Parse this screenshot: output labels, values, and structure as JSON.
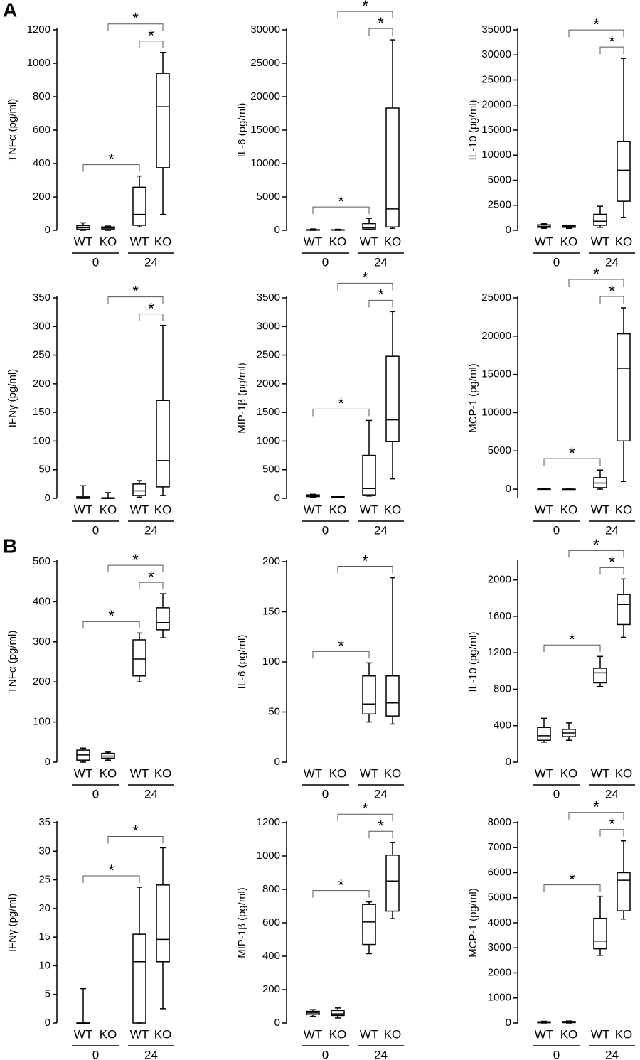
{
  "panel_labels": [
    "A",
    "B"
  ],
  "chart_data": [
    {
      "type": "box",
      "ylabel": "TNFα (pg/ml)",
      "categories": [
        "WT",
        "KO",
        "WT",
        "KO"
      ],
      "groups": [
        "0",
        "24"
      ],
      "ylim": [
        0,
        1200
      ],
      "yticks": [
        0,
        200,
        400,
        600,
        800,
        1000,
        1200
      ],
      "boxes": [
        {
          "min": 0,
          "q1": 5,
          "median": 15,
          "q3": 28,
          "max": 45
        },
        {
          "min": 0,
          "q1": 8,
          "median": 15,
          "q3": 20,
          "max": 25
        },
        {
          "min": 20,
          "q1": 30,
          "median": 95,
          "q3": 258,
          "max": 325
        },
        {
          "min": 95,
          "q1": 375,
          "median": 740,
          "q3": 940,
          "max": 1065
        }
      ],
      "comparisons": [
        {
          "between": [
            0,
            2
          ],
          "label": "*"
        },
        {
          "between": [
            2,
            3
          ],
          "label": "*"
        },
        {
          "between": [
            1,
            3
          ],
          "label": "*"
        }
      ]
    },
    {
      "type": "box",
      "ylabel": "IL-6 (pg/ml)",
      "categories": [
        "WT",
        "KO",
        "WT",
        "KO"
      ],
      "groups": [
        "0",
        "24"
      ],
      "ylim": [
        0,
        30000
      ],
      "yticks": [
        0,
        5000,
        10000,
        15000,
        20000,
        25000,
        30000
      ],
      "boxes": [
        {
          "min": 0,
          "q1": 20,
          "median": 50,
          "q3": 100,
          "max": 200
        },
        {
          "min": 0,
          "q1": 20,
          "median": 40,
          "q3": 80,
          "max": 150
        },
        {
          "min": 100,
          "q1": 200,
          "median": 400,
          "q3": 1000,
          "max": 1800
        },
        {
          "min": 300,
          "q1": 500,
          "median": 3200,
          "q3": 18300,
          "max": 28500
        }
      ],
      "comparisons": [
        {
          "between": [
            0,
            2
          ],
          "label": "*"
        },
        {
          "between": [
            2,
            3
          ],
          "label": "*"
        },
        {
          "between": [
            1,
            3
          ],
          "label": "*"
        }
      ]
    },
    {
      "type": "box",
      "ylabel": "IL-10 (pg/ml)",
      "categories": [
        "WT",
        "KO",
        "WT",
        "KO"
      ],
      "groups": [
        "0",
        "24"
      ],
      "scale": "segmented",
      "ylim": [
        0,
        35000
      ],
      "yticks": [
        0,
        2500,
        5000,
        10000,
        15000,
        20000,
        25000,
        30000,
        35000
      ],
      "boxes": [
        {
          "min": 200,
          "q1": 300,
          "median": 400,
          "q3": 550,
          "max": 650
        },
        {
          "min": 200,
          "q1": 300,
          "median": 350,
          "q3": 450,
          "max": 500
        },
        {
          "min": 300,
          "q1": 500,
          "median": 900,
          "q3": 1600,
          "max": 2400
        },
        {
          "min": 1300,
          "q1": 2900,
          "median": 7000,
          "q3": 12700,
          "max": 29300
        }
      ],
      "comparisons": [
        {
          "between": [
            2,
            3
          ],
          "label": "*"
        },
        {
          "between": [
            1,
            3
          ],
          "label": "*"
        }
      ]
    },
    {
      "type": "box",
      "ylabel": "IFNγ (pg/ml)",
      "categories": [
        "WT",
        "KO",
        "WT",
        "KO"
      ],
      "groups": [
        "0",
        "24"
      ],
      "ylim": [
        0,
        350
      ],
      "yticks": [
        0,
        50,
        100,
        150,
        200,
        250,
        300,
        350
      ],
      "boxes": [
        {
          "min": 0,
          "q1": 0,
          "median": 2,
          "q3": 4,
          "max": 22
        },
        {
          "min": 0,
          "q1": 0,
          "median": 0,
          "q3": 1,
          "max": 10
        },
        {
          "min": 2,
          "q1": 5,
          "median": 13,
          "q3": 25,
          "max": 31
        },
        {
          "min": 5,
          "q1": 20,
          "median": 66,
          "q3": 171,
          "max": 302
        }
      ],
      "comparisons": [
        {
          "between": [
            2,
            3
          ],
          "label": "*"
        },
        {
          "between": [
            1,
            3
          ],
          "label": "*"
        }
      ]
    },
    {
      "type": "box",
      "ylabel": "MIP-1β (pg/ml)",
      "categories": [
        "WT",
        "KO",
        "WT",
        "KO"
      ],
      "groups": [
        "0",
        "24"
      ],
      "ylim": [
        0,
        3500
      ],
      "yticks": [
        0,
        500,
        1000,
        1500,
        2000,
        2500,
        3000,
        3500
      ],
      "boxes": [
        {
          "min": 20,
          "q1": 30,
          "median": 45,
          "q3": 60,
          "max": 70
        },
        {
          "min": 15,
          "q1": 20,
          "median": 25,
          "q3": 30,
          "max": 35
        },
        {
          "min": 40,
          "q1": 60,
          "median": 170,
          "q3": 750,
          "max": 1360
        },
        {
          "min": 340,
          "q1": 990,
          "median": 1370,
          "q3": 2480,
          "max": 3260
        }
      ],
      "comparisons": [
        {
          "between": [
            0,
            2
          ],
          "label": "*"
        },
        {
          "between": [
            2,
            3
          ],
          "label": "*"
        },
        {
          "between": [
            1,
            3
          ],
          "label": "*"
        }
      ]
    },
    {
      "type": "box",
      "ylabel": "MCP-1 (pg/ml)",
      "categories": [
        "WT",
        "KO",
        "WT",
        "KO"
      ],
      "groups": [
        "0",
        "24"
      ],
      "ylim": [
        -1200,
        25000
      ],
      "yticks": [
        0,
        5000,
        10000,
        15000,
        20000,
        25000
      ],
      "boxes": [
        {
          "min": 0,
          "q1": 0,
          "median": 10,
          "q3": 20,
          "max": 30
        },
        {
          "min": 0,
          "q1": 0,
          "median": 0,
          "q3": 5,
          "max": 10
        },
        {
          "min": 0,
          "q1": 200,
          "median": 800,
          "q3": 1500,
          "max": 2500
        },
        {
          "min": 1000,
          "q1": 6300,
          "median": 15800,
          "q3": 20300,
          "max": 23700
        }
      ],
      "comparisons": [
        {
          "between": [
            0,
            2
          ],
          "label": "*"
        },
        {
          "between": [
            2,
            3
          ],
          "label": "*"
        },
        {
          "between": [
            1,
            3
          ],
          "label": "*"
        }
      ]
    },
    {
      "type": "box",
      "ylabel": "TNFα (pg/ml)",
      "categories": [
        "WT",
        "KO",
        "WT",
        "KO"
      ],
      "groups": [
        "0",
        "24"
      ],
      "ylim": [
        0,
        500
      ],
      "yticks": [
        0,
        100,
        200,
        300,
        400,
        500
      ],
      "boxes": [
        {
          "min": 0,
          "q1": 5,
          "median": 18,
          "q3": 30,
          "max": 35
        },
        {
          "min": 5,
          "q1": 10,
          "median": 15,
          "q3": 22,
          "max": 25
        },
        {
          "min": 200,
          "q1": 215,
          "median": 257,
          "q3": 305,
          "max": 322
        },
        {
          "min": 310,
          "q1": 330,
          "median": 348,
          "q3": 385,
          "max": 420
        }
      ],
      "comparisons": [
        {
          "between": [
            0,
            2
          ],
          "label": "*"
        },
        {
          "between": [
            2,
            3
          ],
          "label": "*"
        },
        {
          "between": [
            1,
            3
          ],
          "label": "*"
        }
      ]
    },
    {
      "type": "box",
      "ylabel": "IL-6 (pg/ml)",
      "categories": [
        "WT",
        "KO",
        "WT",
        "KO"
      ],
      "groups": [
        "0",
        "24"
      ],
      "ylim": [
        0,
        200
      ],
      "yticks": [
        0,
        50,
        100,
        150,
        200
      ],
      "boxes": [
        null,
        null,
        {
          "min": 40,
          "q1": 48,
          "median": 58,
          "q3": 86,
          "max": 99
        },
        {
          "min": 38,
          "q1": 46,
          "median": 59,
          "q3": 86,
          "max": 184
        }
      ],
      "comparisons": [
        {
          "between": [
            0,
            2
          ],
          "label": "*"
        },
        {
          "between": [
            1,
            3
          ],
          "label": "*"
        }
      ]
    },
    {
      "type": "box",
      "ylabel": "IL-10 (pg/ml)",
      "categories": [
        "WT",
        "KO",
        "WT",
        "KO"
      ],
      "groups": [
        "0",
        "24"
      ],
      "ylim": [
        0,
        2200
      ],
      "yticks": [
        0,
        400,
        800,
        1200,
        1600,
        2000
      ],
      "boxes": [
        {
          "min": 220,
          "q1": 240,
          "median": 290,
          "q3": 380,
          "max": 480
        },
        {
          "min": 240,
          "q1": 280,
          "median": 320,
          "q3": 360,
          "max": 430
        },
        {
          "min": 830,
          "q1": 870,
          "median": 980,
          "q3": 1030,
          "max": 1160
        },
        {
          "min": 1370,
          "q1": 1510,
          "median": 1730,
          "q3": 1840,
          "max": 2010
        }
      ],
      "comparisons": [
        {
          "between": [
            0,
            2
          ],
          "label": "*"
        },
        {
          "between": [
            2,
            3
          ],
          "label": "*"
        },
        {
          "between": [
            1,
            3
          ],
          "label": "*"
        }
      ]
    },
    {
      "type": "box",
      "ylabel": "IFNγ (pg/ml)",
      "categories": [
        "WT",
        "KO",
        "WT",
        "KO"
      ],
      "groups": [
        "0",
        "24"
      ],
      "ylim": [
        0,
        35
      ],
      "yticks": [
        0,
        5,
        10,
        15,
        20,
        25,
        30,
        35
      ],
      "boxes": [
        {
          "min": 0,
          "q1": 0,
          "median": 0,
          "q3": 0,
          "max": 6
        },
        null,
        {
          "min": 0,
          "q1": 0,
          "median": 10.7,
          "q3": 15.5,
          "max": 23.7
        },
        {
          "min": 2.5,
          "q1": 10.7,
          "median": 14.6,
          "q3": 24.1,
          "max": 30.6
        }
      ],
      "comparisons": [
        {
          "between": [
            0,
            2
          ],
          "label": "*"
        },
        {
          "between": [
            1,
            3
          ],
          "label": "*"
        }
      ]
    },
    {
      "type": "box",
      "ylabel": "MIP-1β (pg/ml)",
      "categories": [
        "WT",
        "KO",
        "WT",
        "KO"
      ],
      "groups": [
        "0",
        "24"
      ],
      "ylim": [
        0,
        1200
      ],
      "yticks": [
        0,
        200,
        400,
        600,
        800,
        1000,
        1200
      ],
      "boxes": [
        {
          "min": 40,
          "q1": 50,
          "median": 60,
          "q3": 70,
          "max": 80
        },
        {
          "min": 30,
          "q1": 45,
          "median": 55,
          "q3": 75,
          "max": 90
        },
        {
          "min": 415,
          "q1": 470,
          "median": 605,
          "q3": 710,
          "max": 725
        },
        {
          "min": 625,
          "q1": 670,
          "median": 850,
          "q3": 1005,
          "max": 1080
        }
      ],
      "comparisons": [
        {
          "between": [
            0,
            2
          ],
          "label": "*"
        },
        {
          "between": [
            2,
            3
          ],
          "label": "*"
        },
        {
          "between": [
            1,
            3
          ],
          "label": "*"
        }
      ]
    },
    {
      "type": "box",
      "ylabel": "MCP-1 (pg/ml)",
      "categories": [
        "WT",
        "KO",
        "WT",
        "KO"
      ],
      "groups": [
        "0",
        "24"
      ],
      "ylim": [
        0,
        8000
      ],
      "yticks": [
        0,
        1000,
        2000,
        3000,
        4000,
        5000,
        6000,
        7000,
        8000
      ],
      "boxes": [
        {
          "min": 0,
          "q1": 10,
          "median": 30,
          "q3": 50,
          "max": 70
        },
        {
          "min": 0,
          "q1": 15,
          "median": 40,
          "q3": 60,
          "max": 80
        },
        {
          "min": 2700,
          "q1": 2960,
          "median": 3270,
          "q3": 4180,
          "max": 5060
        },
        {
          "min": 4150,
          "q1": 4480,
          "median": 5700,
          "q3": 6000,
          "max": 7270
        }
      ],
      "comparisons": [
        {
          "between": [
            0,
            2
          ],
          "label": "*"
        },
        {
          "between": [
            2,
            3
          ],
          "label": "*"
        },
        {
          "between": [
            1,
            3
          ],
          "label": "*"
        }
      ]
    }
  ]
}
